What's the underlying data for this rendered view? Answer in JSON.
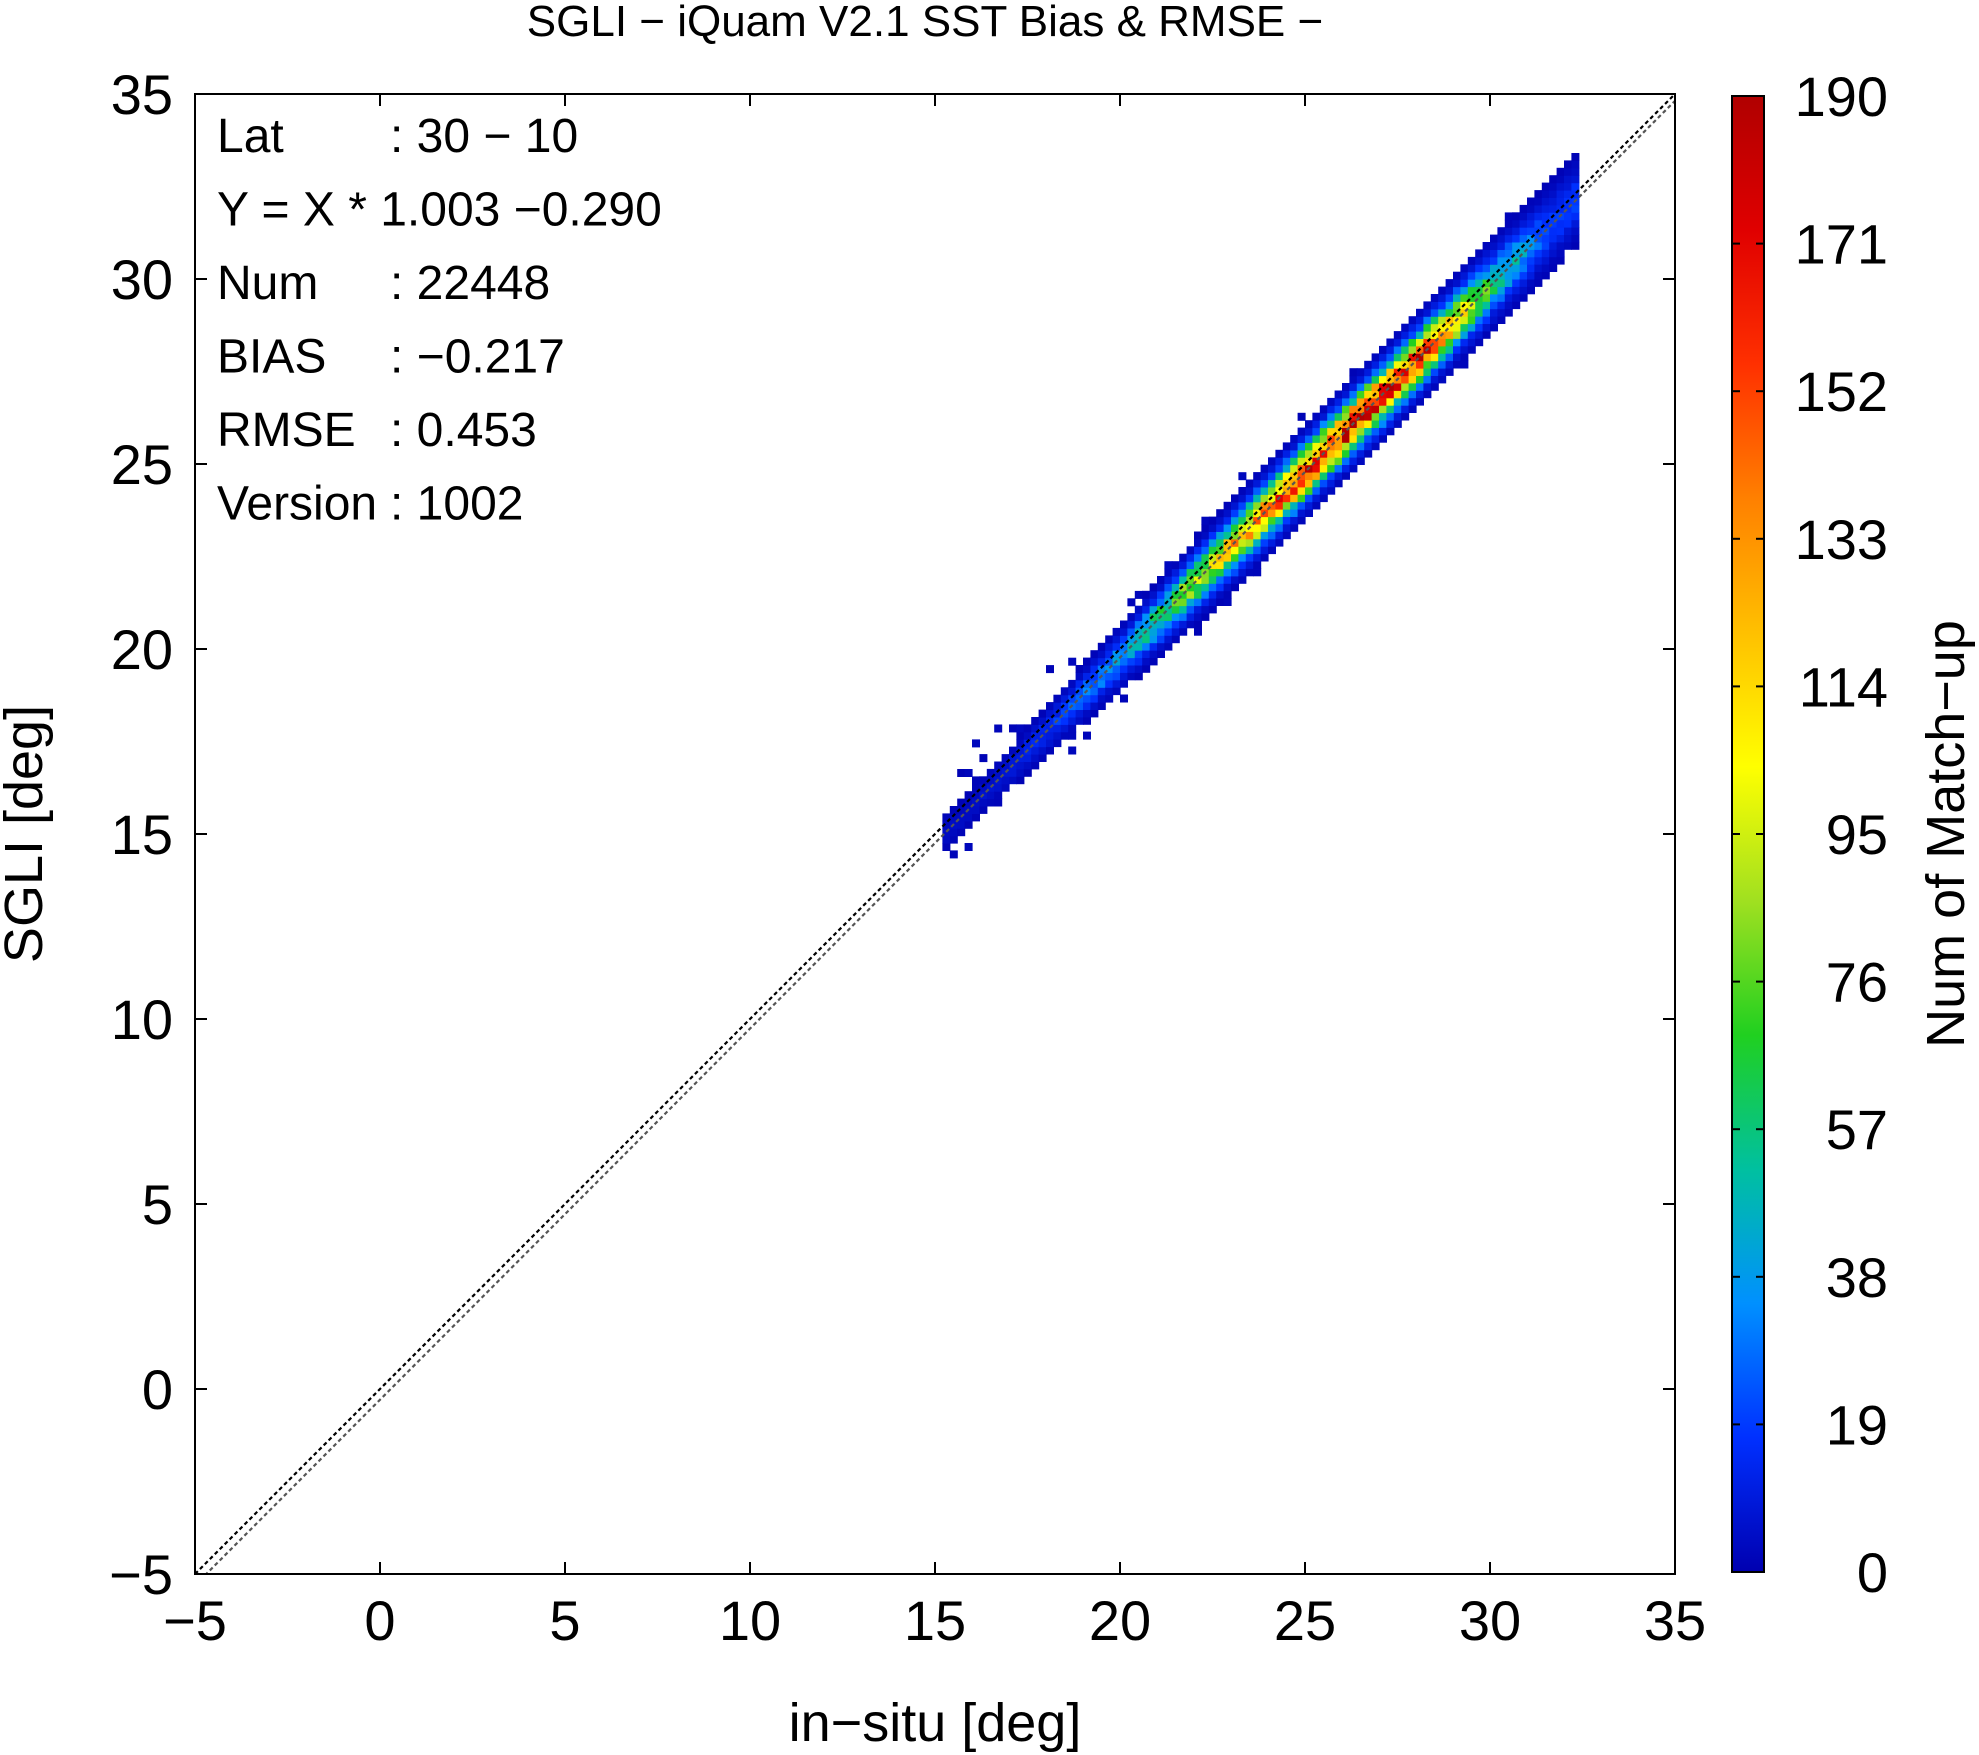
{
  "chart_data": {
    "type": "heatmap",
    "title": "SGLI − iQuam V2.1 SST Bias & RMSE  −",
    "xlabel": "in−situ [deg]",
    "ylabel": "SGLI [deg]",
    "xlim": [
      -5,
      35
    ],
    "ylim": [
      -5,
      35
    ],
    "x_ticks": [
      "−5",
      "0",
      "5",
      "10",
      "15",
      "20",
      "25",
      "30",
      "35"
    ],
    "y_ticks": [
      "−5",
      "0",
      "5",
      "10",
      "15",
      "20",
      "25",
      "30",
      "35"
    ],
    "colorbar": {
      "label": "Num of Match−up",
      "min": 0,
      "max": 190,
      "ticks": [
        "0",
        "19",
        "38",
        "57",
        "76",
        "95",
        "114",
        "133",
        "152",
        "171",
        "190"
      ],
      "colors": [
        "#0000b0",
        "#0030ff",
        "#0090ff",
        "#00c0a0",
        "#20d020",
        "#a0e020",
        "#ffff00",
        "#ffc000",
        "#ff8000",
        "#ff3000",
        "#e00000",
        "#b00000"
      ]
    },
    "reference_lines": [
      {
        "name": "1:1",
        "slope": 1,
        "intercept": 0
      },
      {
        "name": "regression",
        "slope": 1.003,
        "intercept": -0.29
      }
    ],
    "density": {
      "bin_size": 0.2,
      "x_range": [
        15.2,
        32.2
      ],
      "core_x": [
        16,
        18,
        20,
        22,
        24,
        26,
        28,
        30,
        31.5
      ],
      "core_peak": [
        5,
        15,
        40,
        90,
        150,
        175,
        160,
        60,
        20
      ],
      "spread_sd": [
        0.25,
        0.3,
        0.35,
        0.4,
        0.42,
        0.42,
        0.42,
        0.45,
        0.5
      ]
    },
    "stats": [
      {
        "label": "Lat",
        "value": ": 30 − 10"
      },
      {
        "label": "Y = X * 1.003 −0.290",
        "value": ""
      },
      {
        "label": "Num",
        "value": ": 22448"
      },
      {
        "label": "BIAS",
        "value": ": −0.217"
      },
      {
        "label": "RMSE",
        "value": ": 0.453"
      },
      {
        "label": "Version",
        "value": ": 1002"
      }
    ]
  }
}
